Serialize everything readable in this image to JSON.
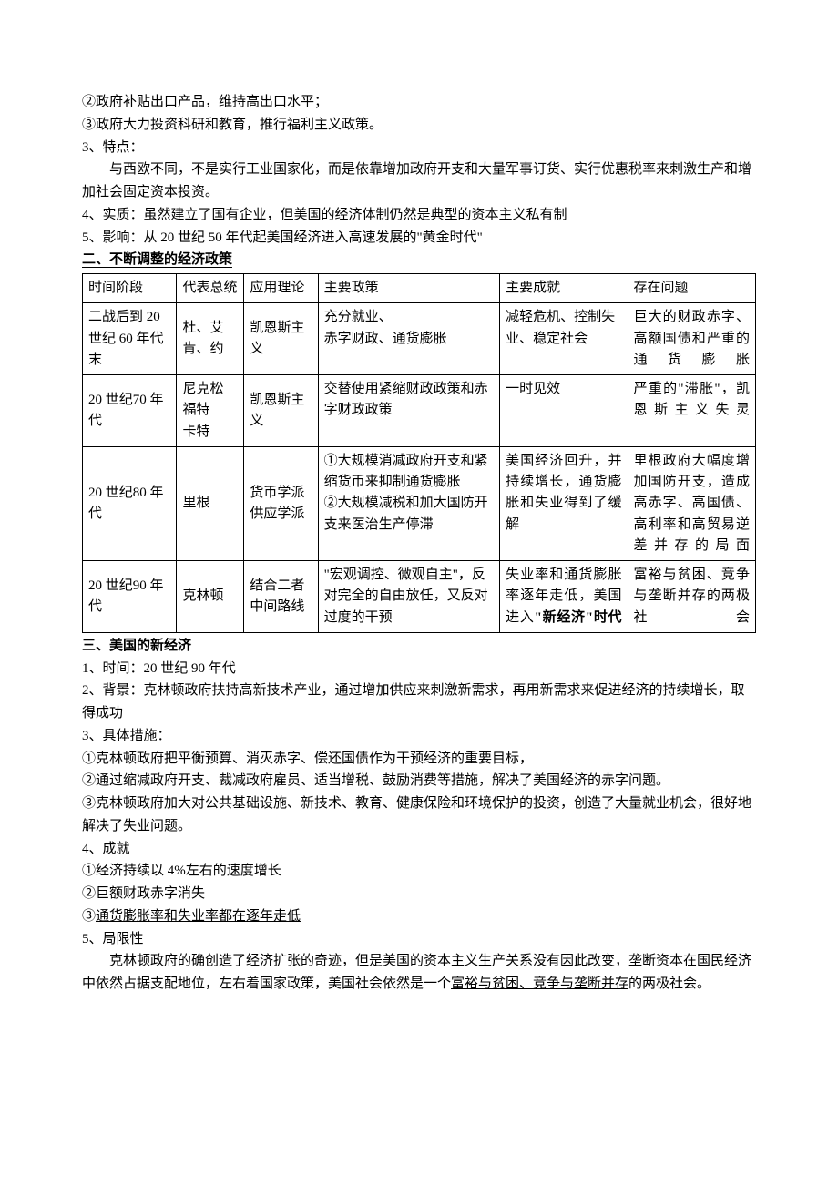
{
  "prelude": {
    "item2": "②政府补贴出口产品，维持高出口水平；",
    "item3": "③政府大力投资科研和教育，推行福利主义政策。",
    "point3_label": "3、特点：",
    "point3_body": "与西欧不同，不是实行工业国家化，而是依靠增加政府开支和大量军事订货、实行优惠税率来刺激生产和增加社会固定资本投资。",
    "point4": "4、实质：虽然建立了国有企业，但美国的经济体制仍然是典型的资本主义私有制",
    "point5": "5、影响：从 20 世纪 50 年代起美国经济进入高速发展的\"黄金时代\""
  },
  "section2": {
    "title": "二、不断调整的经济政策",
    "headers": {
      "period": "时间阶段",
      "president": "代表总统",
      "theory": "应用理论",
      "policy": "主要政策",
      "achievement": "主要成就",
      "problem": "存在问题"
    },
    "rows": [
      {
        "period": "二战后到 20 世纪 60 年代末",
        "president": "杜、艾肯、约",
        "theory": "凯恩斯主义",
        "policy": "充分就业、\n赤字财政、通货膨胀",
        "achievement": "减轻危机、控制失业、稳定社会",
        "problem": "巨大的财政赤字、高额国债和严重的通货膨胀"
      },
      {
        "period": "20 世纪70 年代",
        "president_lines": [
          "尼克松",
          "福特",
          "卡特"
        ],
        "theory": "凯恩斯主义",
        "policy": "交替使用紧缩财政政策和赤字财政政策",
        "achievement": "一时见效",
        "problem": "严重的\"滞胀\"，凯恩斯主义失灵"
      },
      {
        "period": "20 世纪80 年代",
        "president": "里根",
        "theory": "货币学派供应学派",
        "policy": "①大规模消减政府开支和紧缩货币来抑制通货膨胀\n②大规模减税和加大国防开支来医治生产停滞",
        "achievement": "美国经济回升，并持续增长，通货膨胀和失业得到了缓解",
        "problem": "里根政府大幅度增加国防开支，造成高赤字、高国债、高利率和高贸易逆差并存的局面"
      },
      {
        "period": "20 世纪90 年代",
        "president": "克林顿",
        "theory": "结合二者中间路线",
        "policy": "\"宏观调控、微观自主\"，反对完全的自由放任，又反对过度的干预",
        "achievement_plain": "失业率和通货膨胀率逐年走低，美国进入",
        "achievement_bold": "\"新经济\"时代",
        "problem": "富裕与贫困、竞争与垄断并存的两极社会"
      }
    ]
  },
  "section3": {
    "title": "三、美国的新经济",
    "point1": "1、时间：20 世纪 90 年代",
    "point2": "2、背景：克林顿政府扶持高新技术产业，通过增加供应来刺激新需求，再用新需求来促进经济的持续增长，取得成功",
    "point3_label": "3、具体措施：",
    "measure1": "①克林顿政府把平衡预算、消灭赤字、偿还国债作为干预经济的重要目标，",
    "measure2": "②通过缩减政府开支、裁减政府雇员、适当增税、鼓励消费等措施，解决了美国经济的赤字问题。",
    "measure3": "③克林顿政府加大对公共基础设施、新技术、教育、健康保险和环境保护的投资，创造了大量就业机会，很好地解决了失业问题。",
    "point4_label": "4、成就",
    "ach1": "①经济持续以 4%左右的速度增长",
    "ach2": "②巨额财政赤字消失",
    "ach3_prefix": "③",
    "ach3_underline": "通货膨胀率和失业率都在逐年走低",
    "point5_label": "5、局限性",
    "limit_pre": "克林顿政府的确创造了经济扩张的奇迹，但是美国的资本主义生产关系没有因此改变，垄断资本在国民经济中依然占据支配地位，左右着国家政策，美国社会依然是一个",
    "limit_underline": "富裕与贫困、竞争与垄断并存",
    "limit_post": "的两极社会。"
  }
}
